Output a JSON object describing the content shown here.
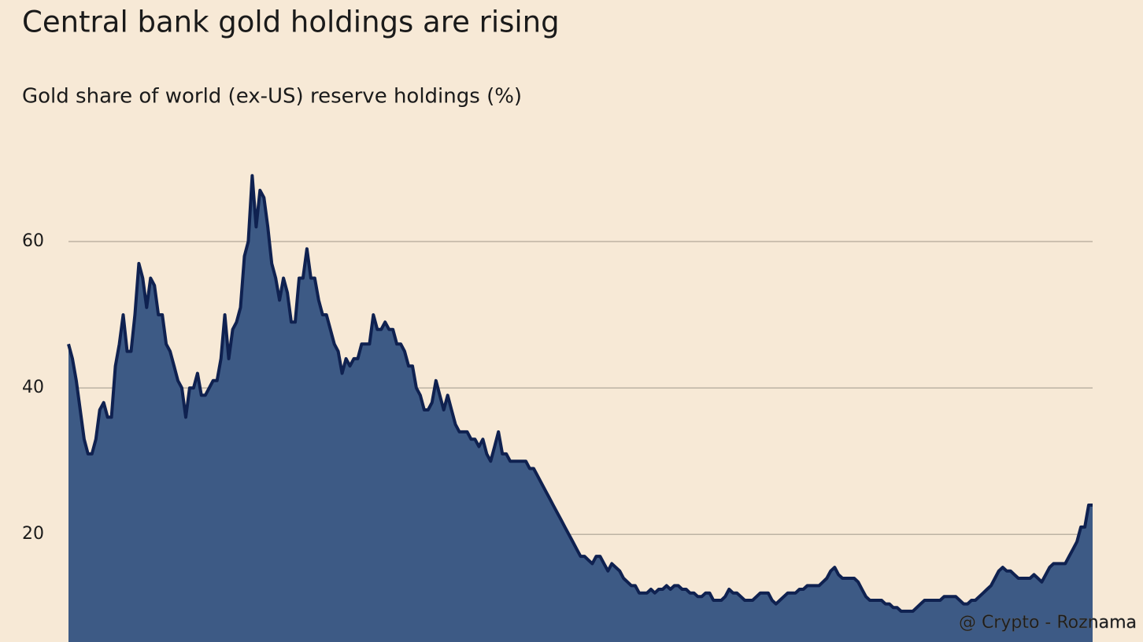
{
  "chart_data": {
    "type": "area",
    "title": "Central bank gold holdings are rising",
    "subtitle": "Gold share of world (ex-US) reserve holdings (%)",
    "watermark": "@ Crypto - Roznama",
    "values": [
      46,
      44,
      41,
      37,
      33,
      31,
      31,
      33,
      37,
      38,
      36,
      36,
      43,
      46,
      50,
      45,
      45,
      50,
      57,
      55,
      51,
      55,
      54,
      50,
      50,
      46,
      45,
      43,
      41,
      40,
      36,
      40,
      40,
      42,
      39,
      39,
      40,
      41,
      41,
      44,
      50,
      44,
      48,
      49,
      51,
      58,
      60,
      69,
      62,
      67,
      66,
      62,
      57,
      55,
      52,
      55,
      53,
      49,
      49,
      55,
      55,
      59,
      55,
      55,
      52,
      50,
      50,
      48,
      46,
      45,
      42,
      44,
      43,
      44,
      44,
      46,
      46,
      46,
      50,
      48,
      48,
      49,
      48,
      48,
      46,
      46,
      45,
      43,
      43,
      40,
      39,
      37,
      37,
      38,
      41,
      39,
      37,
      39,
      37,
      35,
      34,
      34,
      34,
      33,
      33,
      32,
      33,
      31,
      30,
      32,
      34,
      31,
      31,
      30,
      30,
      30,
      30,
      30,
      29,
      29,
      28,
      27,
      26,
      25,
      24,
      23,
      22,
      21,
      20,
      19,
      18,
      17,
      17,
      16.5,
      16,
      17,
      17,
      16,
      15,
      16,
      15.5,
      15,
      14,
      13.5,
      13,
      13,
      12,
      12,
      12,
      12.5,
      12,
      12.5,
      12.5,
      13,
      12.5,
      13,
      13,
      12.5,
      12.5,
      12,
      12,
      11.5,
      11.5,
      12,
      12,
      11,
      11,
      11,
      11.5,
      12.5,
      12,
      12,
      11.5,
      11,
      11,
      11,
      11.5,
      12,
      12,
      12,
      11,
      10.5,
      11,
      11.5,
      12,
      12,
      12,
      12.5,
      12.5,
      13,
      13,
      13,
      13,
      13.5,
      14,
      15,
      15.5,
      14.5,
      14,
      14,
      14,
      14,
      13.5,
      12.5,
      11.5,
      11,
      11,
      11,
      11,
      10.5,
      10.5,
      10,
      10,
      9.5,
      9.5,
      9.5,
      9.5,
      10,
      10.5,
      11,
      11,
      11,
      11,
      11,
      11.5,
      11.5,
      11.5,
      11.5,
      11,
      10.5,
      10.5,
      11,
      11,
      11.5,
      12,
      12.5,
      13,
      14,
      15,
      15.5,
      15,
      15,
      14.5,
      14,
      14,
      14,
      14,
      14.5,
      14,
      13.5,
      14.5,
      15.5,
      16,
      16,
      16,
      16,
      17,
      18,
      19,
      21,
      21,
      24,
      24
    ],
    "color": "#3d5a85",
    "line_color": "#0f2150",
    "ylim": [
      5.3,
      75.8
    ],
    "yticks": [
      20,
      40,
      60
    ],
    "grid": true
  }
}
